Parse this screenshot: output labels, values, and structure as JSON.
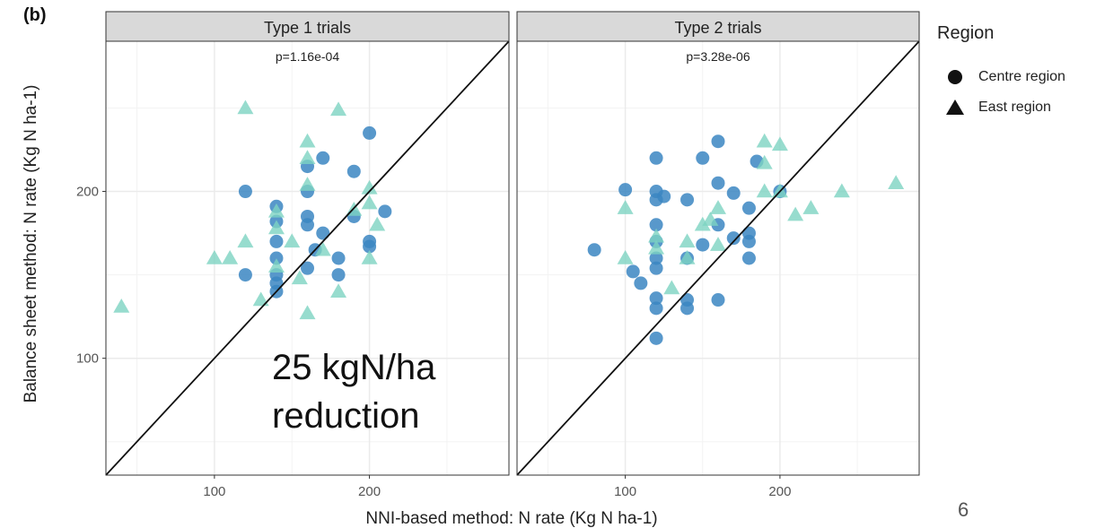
{
  "figure_label": "(b)",
  "overlay_lines": [
    "25 kgN/ha",
    "reduction"
  ],
  "slide_number": "6",
  "legend": {
    "title": "Region",
    "items": [
      {
        "label": "Centre region",
        "shape": "circle"
      },
      {
        "label": "East region",
        "shape": "triangle"
      }
    ]
  },
  "colors": {
    "centre": "#3b86c2",
    "east": "#7dd3c2",
    "strip_bg": "#d9d9d9",
    "grid": "#ebebeb",
    "line": "#111111"
  },
  "chart_data": {
    "type": "scatter",
    "xlabel": "NNI-based method: N rate (Kg N ha-1)",
    "ylabel": "Balance sheet method: N rate (Kg N ha-1)",
    "xlim": [
      30,
      290
    ],
    "ylim": [
      30,
      290
    ],
    "x_ticks": [
      100,
      200
    ],
    "y_ticks": [
      100,
      200
    ],
    "grid": true,
    "reference_line": "y = x",
    "facets": [
      {
        "strip": "Type 1 trials",
        "annotation": "p=1.16e-04",
        "series": [
          {
            "name": "Centre region",
            "shape": "circle",
            "points": [
              [
                120,
                200
              ],
              [
                120,
                150
              ],
              [
                140,
                191
              ],
              [
                140,
                182
              ],
              [
                140,
                170
              ],
              [
                140,
                160
              ],
              [
                140,
                145
              ],
              [
                140,
                140
              ],
              [
                160,
                185
              ],
              [
                160,
                154
              ],
              [
                180,
                160
              ],
              [
                180,
                150
              ],
              [
                200,
                235
              ],
              [
                200,
                167
              ],
              [
                140,
                150
              ],
              [
                160,
                200
              ],
              [
                160,
                180
              ],
              [
                160,
                215
              ],
              [
                170,
                220
              ],
              [
                170,
                175
              ],
              [
                165,
                165
              ],
              [
                190,
                212
              ],
              [
                190,
                185
              ],
              [
                200,
                170
              ],
              [
                210,
                188
              ]
            ]
          },
          {
            "name": "East region",
            "shape": "triangle",
            "points": [
              [
                40,
                131
              ],
              [
                100,
                160
              ],
              [
                110,
                160
              ],
              [
                120,
                250
              ],
              [
                120,
                170
              ],
              [
                130,
                135
              ],
              [
                140,
                188
              ],
              [
                140,
                178
              ],
              [
                140,
                155
              ],
              [
                150,
                170
              ],
              [
                155,
                148
              ],
              [
                160,
                230
              ],
              [
                160,
                220
              ],
              [
                160,
                204
              ],
              [
                160,
                127
              ],
              [
                170,
                165
              ],
              [
                180,
                249
              ],
              [
                180,
                140
              ],
              [
                190,
                189
              ],
              [
                200,
                202
              ],
              [
                200,
                160
              ],
              [
                200,
                193
              ],
              [
                205,
                180
              ]
            ]
          }
        ]
      },
      {
        "strip": "Type 2 trials",
        "annotation": "p=3.28e-06",
        "series": [
          {
            "name": "Centre region",
            "shape": "circle",
            "points": [
              [
                80,
                165
              ],
              [
                100,
                201
              ],
              [
                120,
                220
              ],
              [
                120,
                200
              ],
              [
                120,
                180
              ],
              [
                120,
                154
              ],
              [
                120,
                136
              ],
              [
                120,
                130
              ],
              [
                140,
                195
              ],
              [
                140,
                160
              ],
              [
                140,
                135
              ],
              [
                140,
                130
              ],
              [
                150,
                220
              ],
              [
                160,
                230
              ],
              [
                160,
                205
              ],
              [
                160,
                135
              ],
              [
                180,
                170
              ],
              [
                180,
                160
              ],
              [
                180,
                190
              ],
              [
                105,
                152
              ],
              [
                110,
                145
              ],
              [
                120,
                112
              ],
              [
                120,
                195
              ],
              [
                120,
                170
              ],
              [
                120,
                160
              ],
              [
                125,
                197
              ],
              [
                150,
                168
              ],
              [
                160,
                180
              ],
              [
                170,
                199
              ],
              [
                170,
                172
              ],
              [
                180,
                175
              ],
              [
                185,
                218
              ],
              [
                200,
                200
              ]
            ]
          },
          {
            "name": "East region",
            "shape": "triangle",
            "points": [
              [
                100,
                190
              ],
              [
                100,
                160
              ],
              [
                120,
                173
              ],
              [
                120,
                166
              ],
              [
                130,
                142
              ],
              [
                140,
                170
              ],
              [
                140,
                160
              ],
              [
                150,
                180
              ],
              [
                155,
                183
              ],
              [
                160,
                190
              ],
              [
                160,
                168
              ],
              [
                190,
                230
              ],
              [
                190,
                217
              ],
              [
                190,
                200
              ],
              [
                200,
                228
              ],
              [
                200,
                200
              ],
              [
                210,
                186
              ],
              [
                220,
                190
              ],
              [
                240,
                200
              ],
              [
                275,
                205
              ]
            ]
          }
        ]
      }
    ]
  }
}
